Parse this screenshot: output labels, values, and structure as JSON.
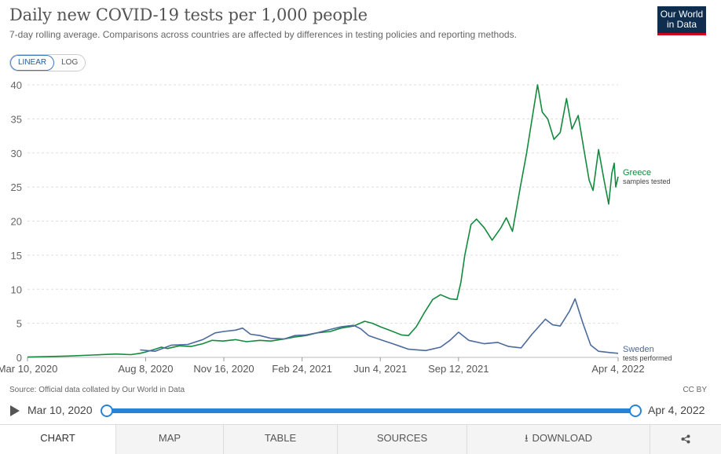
{
  "header": {
    "title": "Daily new COVID-19 tests per 1,000 people",
    "subtitle": "7-day rolling average. Comparisons across countries are affected by differences in testing policies and reporting methods.",
    "logo_line1": "Our World",
    "logo_line2": "in Data"
  },
  "scale_toggle": {
    "linear": "LINEAR",
    "log": "LOG",
    "selected": "LINEAR"
  },
  "chart_data": {
    "type": "line",
    "title": "Daily new COVID-19 tests per 1,000 people",
    "ylim": [
      0,
      40
    ],
    "yticks": [
      0,
      5,
      10,
      15,
      20,
      25,
      30,
      35,
      40
    ],
    "xlim": [
      "2020-03-10",
      "2022-04-04"
    ],
    "xticks": [
      {
        "date": "2020-03-10",
        "label": "Mar 10, 2020"
      },
      {
        "date": "2020-08-08",
        "label": "Aug 8, 2020"
      },
      {
        "date": "2020-11-16",
        "label": "Nov 16, 2020"
      },
      {
        "date": "2021-02-24",
        "label": "Feb 24, 2021"
      },
      {
        "date": "2021-06-04",
        "label": "Jun 4, 2021"
      },
      {
        "date": "2021-09-12",
        "label": "Sep 12, 2021"
      },
      {
        "date": "2022-04-04",
        "label": "Apr 4, 2022"
      }
    ],
    "grid": true,
    "legend": "line-end labels",
    "series": [
      {
        "name": "Greece",
        "sublabel": "samples tested",
        "color": "#138a3e",
        "points": [
          [
            "2020-03-10",
            0.05
          ],
          [
            "2020-04-01",
            0.1
          ],
          [
            "2020-05-01",
            0.2
          ],
          [
            "2020-06-01",
            0.35
          ],
          [
            "2020-07-01",
            0.5
          ],
          [
            "2020-07-20",
            0.4
          ],
          [
            "2020-08-01",
            0.6
          ],
          [
            "2020-08-08",
            0.8
          ],
          [
            "2020-08-20",
            1.2
          ],
          [
            "2020-08-28",
            1.5
          ],
          [
            "2020-09-05",
            1.3
          ],
          [
            "2020-09-20",
            1.7
          ],
          [
            "2020-10-05",
            1.6
          ],
          [
            "2020-10-20",
            2.0
          ],
          [
            "2020-11-01",
            2.5
          ],
          [
            "2020-11-15",
            2.4
          ],
          [
            "2020-12-01",
            2.6
          ],
          [
            "2020-12-15",
            2.3
          ],
          [
            "2021-01-01",
            2.5
          ],
          [
            "2021-01-15",
            2.4
          ],
          [
            "2021-02-01",
            2.7
          ],
          [
            "2021-02-15",
            3.0
          ],
          [
            "2021-03-01",
            3.2
          ],
          [
            "2021-03-15",
            3.6
          ],
          [
            "2021-04-01",
            3.8
          ],
          [
            "2021-04-15",
            4.3
          ],
          [
            "2021-05-01",
            4.6
          ],
          [
            "2021-05-15",
            5.3
          ],
          [
            "2021-05-25",
            5.0
          ],
          [
            "2021-06-04",
            4.5
          ],
          [
            "2021-06-20",
            3.8
          ],
          [
            "2021-07-01",
            3.3
          ],
          [
            "2021-07-10",
            3.2
          ],
          [
            "2021-07-20",
            4.5
          ],
          [
            "2021-07-30",
            6.5
          ],
          [
            "2021-08-10",
            8.5
          ],
          [
            "2021-08-20",
            9.2
          ],
          [
            "2021-09-01",
            8.6
          ],
          [
            "2021-09-10",
            8.5
          ],
          [
            "2021-09-15",
            11.0
          ],
          [
            "2021-09-20",
            15.0
          ],
          [
            "2021-09-28",
            19.5
          ],
          [
            "2021-10-05",
            20.3
          ],
          [
            "2021-10-15",
            19.0
          ],
          [
            "2021-10-25",
            17.2
          ],
          [
            "2021-11-05",
            19.0
          ],
          [
            "2021-11-12",
            20.5
          ],
          [
            "2021-11-20",
            18.5
          ],
          [
            "2021-11-30",
            25.0
          ],
          [
            "2021-12-08",
            30.0
          ],
          [
            "2021-12-15",
            35.0
          ],
          [
            "2021-12-22",
            40.0
          ],
          [
            "2021-12-28",
            36.0
          ],
          [
            "2022-01-04",
            35.0
          ],
          [
            "2022-01-12",
            32.0
          ],
          [
            "2022-01-20",
            33.0
          ],
          [
            "2022-01-28",
            38.0
          ],
          [
            "2022-02-04",
            33.5
          ],
          [
            "2022-02-12",
            35.5
          ],
          [
            "2022-02-20",
            30.0
          ],
          [
            "2022-02-26",
            26.0
          ],
          [
            "2022-03-03",
            24.5
          ],
          [
            "2022-03-10",
            30.5
          ],
          [
            "2022-03-17",
            26.0
          ],
          [
            "2022-03-23",
            22.5
          ],
          [
            "2022-03-27",
            27.0
          ],
          [
            "2022-03-30",
            28.5
          ],
          [
            "2022-04-01",
            25.0
          ],
          [
            "2022-04-04",
            26.5
          ]
        ]
      },
      {
        "name": "Sweden",
        "sublabel": "tests performed",
        "color": "#4c6a9c",
        "points": [
          [
            "2020-08-01",
            1.1
          ],
          [
            "2020-08-20",
            0.9
          ],
          [
            "2020-09-10",
            1.8
          ],
          [
            "2020-10-01",
            1.9
          ],
          [
            "2020-10-20",
            2.6
          ],
          [
            "2020-11-05",
            3.6
          ],
          [
            "2020-11-16",
            3.8
          ],
          [
            "2020-12-01",
            4.0
          ],
          [
            "2020-12-10",
            4.3
          ],
          [
            "2020-12-20",
            3.4
          ],
          [
            "2021-01-01",
            3.2
          ],
          [
            "2021-01-15",
            2.8
          ],
          [
            "2021-02-01",
            2.7
          ],
          [
            "2021-02-15",
            3.2
          ],
          [
            "2021-03-01",
            3.3
          ],
          [
            "2021-03-15",
            3.6
          ],
          [
            "2021-04-01",
            4.1
          ],
          [
            "2021-04-15",
            4.5
          ],
          [
            "2021-05-01",
            4.7
          ],
          [
            "2021-05-10",
            4.2
          ],
          [
            "2021-05-20",
            3.2
          ],
          [
            "2021-06-04",
            2.6
          ],
          [
            "2021-06-20",
            2.0
          ],
          [
            "2021-07-10",
            1.2
          ],
          [
            "2021-08-01",
            1.0
          ],
          [
            "2021-08-20",
            1.5
          ],
          [
            "2021-09-01",
            2.5
          ],
          [
            "2021-09-12",
            3.7
          ],
          [
            "2021-09-25",
            2.5
          ],
          [
            "2021-10-15",
            2.0
          ],
          [
            "2021-11-01",
            2.2
          ],
          [
            "2021-11-15",
            1.6
          ],
          [
            "2021-12-01",
            1.4
          ],
          [
            "2021-12-15",
            3.4
          ],
          [
            "2022-01-01",
            5.6
          ],
          [
            "2022-01-10",
            4.8
          ],
          [
            "2022-01-20",
            4.6
          ],
          [
            "2022-02-01",
            6.8
          ],
          [
            "2022-02-08",
            8.6
          ],
          [
            "2022-02-18",
            5.0
          ],
          [
            "2022-02-28",
            1.8
          ],
          [
            "2022-03-10",
            0.9
          ],
          [
            "2022-03-25",
            0.7
          ],
          [
            "2022-04-04",
            0.6
          ]
        ]
      }
    ]
  },
  "footer": {
    "source": "Source: Official data collated by Our World in Data",
    "license": "CC BY"
  },
  "timeline": {
    "start_label": "Mar 10, 2020",
    "end_label": "Apr 4, 2022"
  },
  "tabs": {
    "chart": "CHART",
    "map": "MAP",
    "table": "TABLE",
    "sources": "SOURCES",
    "download": "DOWNLOAD"
  }
}
